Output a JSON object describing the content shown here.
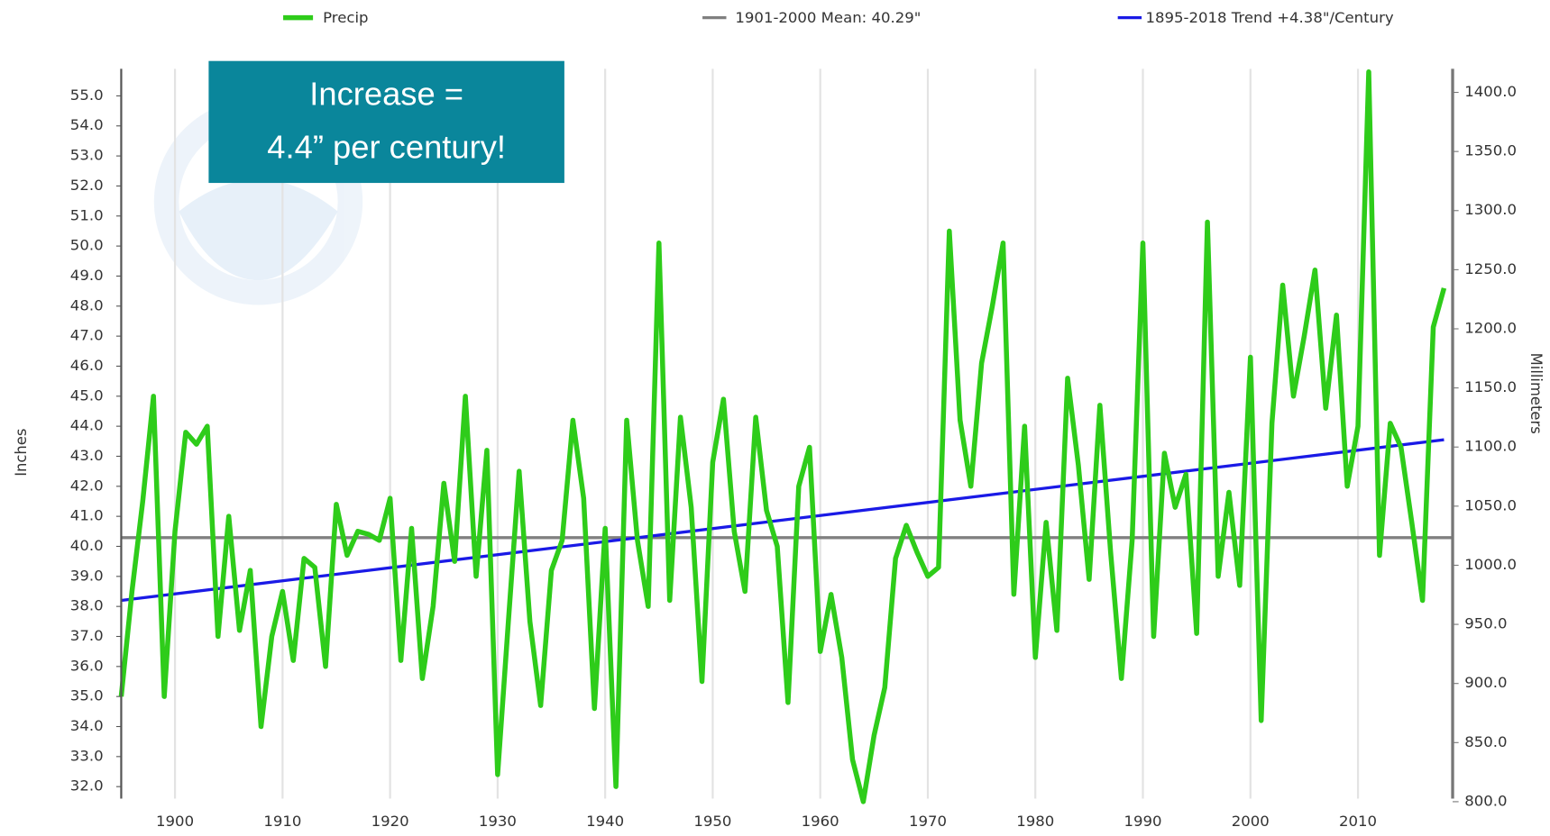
{
  "chart_data": {
    "type": "line",
    "annotation": [
      "Increase =",
      "4.4” per century!"
    ],
    "ylabel": "Inches",
    "y2label": "Millimeters",
    "x": [
      1895,
      1896,
      1897,
      1898,
      1899,
      1900,
      1901,
      1902,
      1903,
      1904,
      1905,
      1906,
      1907,
      1908,
      1909,
      1910,
      1911,
      1912,
      1913,
      1914,
      1915,
      1916,
      1917,
      1918,
      1919,
      1920,
      1921,
      1922,
      1923,
      1924,
      1925,
      1926,
      1927,
      1928,
      1929,
      1930,
      1931,
      1932,
      1933,
      1934,
      1935,
      1936,
      1937,
      1938,
      1939,
      1940,
      1941,
      1942,
      1943,
      1944,
      1945,
      1946,
      1947,
      1948,
      1949,
      1950,
      1951,
      1952,
      1953,
      1954,
      1955,
      1956,
      1957,
      1958,
      1959,
      1960,
      1961,
      1962,
      1963,
      1964,
      1965,
      1966,
      1967,
      1968,
      1969,
      1970,
      1971,
      1972,
      1973,
      1974,
      1975,
      1976,
      1977,
      1978,
      1979,
      1980,
      1981,
      1982,
      1983,
      1984,
      1985,
      1986,
      1987,
      1988,
      1989,
      1990,
      1991,
      1992,
      1993,
      1994,
      1995,
      1996,
      1997,
      1998,
      1999,
      2000,
      2001,
      2002,
      2003,
      2004,
      2005,
      2006,
      2007,
      2008,
      2009,
      2010,
      2011,
      2012,
      2013,
      2014,
      2015,
      2016,
      2017,
      2018
    ],
    "series": [
      {
        "name": "Precip",
        "color": "#2ecc1a",
        "values": [
          35.0,
          38.5,
          41.5,
          45.0,
          35.0,
          40.5,
          43.8,
          43.4,
          44.0,
          37.0,
          41.0,
          37.2,
          39.2,
          34.0,
          37.0,
          38.5,
          36.2,
          39.6,
          39.3,
          36.0,
          41.4,
          39.7,
          40.5,
          40.4,
          40.2,
          41.6,
          36.2,
          40.6,
          35.6,
          38.0,
          42.1,
          39.5,
          45.0,
          39.0,
          43.2,
          32.4,
          37.5,
          42.5,
          37.5,
          34.7,
          39.2,
          40.2,
          44.2,
          41.6,
          34.6,
          40.6,
          32.0,
          44.2,
          40.2,
          38.0,
          50.1,
          38.2,
          44.3,
          41.3,
          35.5,
          42.8,
          44.9,
          40.5,
          38.5,
          44.3,
          41.2,
          40.0,
          34.8,
          42.0,
          43.3,
          36.5,
          38.4,
          36.3,
          32.9,
          31.5,
          33.7,
          35.3,
          39.6,
          40.7,
          39.8,
          39.0,
          39.3,
          50.5,
          44.2,
          42.0,
          46.1,
          48.0,
          50.1,
          38.4,
          44.0,
          36.3,
          40.8,
          37.2,
          45.6,
          42.7,
          38.9,
          44.7,
          39.8,
          35.6,
          40.2,
          50.1,
          37.0,
          43.1,
          41.3,
          42.4,
          37.1,
          50.8,
          39.0,
          41.8,
          38.7,
          46.3,
          34.2,
          44.1,
          48.7,
          45.0,
          47.0,
          49.2,
          44.6,
          47.7,
          42.0,
          44.0,
          55.8,
          39.7,
          44.1,
          43.3,
          40.8,
          38.2,
          47.3,
          48.6
        ]
      },
      {
        "name": "1901-2000 Mean: 40.29\"",
        "color": "#808080",
        "x": [
          1895,
          2018.8
        ],
        "values": [
          40.29,
          40.29
        ]
      },
      {
        "name": "1895-2018 Trend +4.38\"/Century",
        "color": "#1a1ae6",
        "x": [
          1895,
          2018
        ],
        "values": [
          38.2,
          43.55
        ]
      }
    ],
    "xlim": [
      1895,
      2018.8
    ],
    "xticks": [
      1900,
      1910,
      1920,
      1930,
      1940,
      1950,
      1960,
      1970,
      1980,
      1990,
      2000,
      2010
    ],
    "ylim": [
      31.6,
      55.9
    ],
    "yticks": [
      {
        "value": 32,
        "label": "32.0"
      },
      {
        "value": 33,
        "label": "33.0"
      },
      {
        "value": 34,
        "label": "34.0"
      },
      {
        "value": 35,
        "label": "35.0"
      },
      {
        "value": 36,
        "label": "36.0"
      },
      {
        "value": 37,
        "label": "37.0"
      },
      {
        "value": 38,
        "label": "38.0"
      },
      {
        "value": 39,
        "label": "39.0"
      },
      {
        "value": 40,
        "label": "40.0"
      },
      {
        "value": 41,
        "label": "41.0"
      },
      {
        "value": 42,
        "label": "42.0"
      },
      {
        "value": 43,
        "label": "43.0"
      },
      {
        "value": 44,
        "label": "44.0"
      },
      {
        "value": 45,
        "label": "45.0"
      },
      {
        "value": 46,
        "label": "46.0"
      },
      {
        "value": 47,
        "label": "47.0"
      },
      {
        "value": 48,
        "label": "48.0"
      },
      {
        "value": 49,
        "label": "49.0"
      },
      {
        "value": 50,
        "label": "50.0"
      },
      {
        "value": 51,
        "label": "51.0"
      },
      {
        "value": 52,
        "label": "52.0"
      },
      {
        "value": 53,
        "label": "53.0"
      },
      {
        "value": 54,
        "label": "54.0"
      },
      {
        "value": 55,
        "label": "55.0"
      }
    ],
    "y2lim": [
      802.6,
      1419.9
    ],
    "y2ticks": [
      {
        "value": 800,
        "label": "800.0"
      },
      {
        "value": 850,
        "label": "850.0"
      },
      {
        "value": 900,
        "label": "900.0"
      },
      {
        "value": 950,
        "label": "950.0"
      },
      {
        "value": 1000,
        "label": "1000.0"
      },
      {
        "value": 1050,
        "label": "1050.0"
      },
      {
        "value": 1100,
        "label": "1100.0"
      },
      {
        "value": 1150,
        "label": "1150.0"
      },
      {
        "value": 1200,
        "label": "1200.0"
      },
      {
        "value": 1250,
        "label": "1250.0"
      },
      {
        "value": 1300,
        "label": "1300.0"
      },
      {
        "value": 1350,
        "label": "1350.0"
      },
      {
        "value": 1400,
        "label": "1400.0"
      }
    ],
    "grid": "x",
    "legend": "top"
  }
}
